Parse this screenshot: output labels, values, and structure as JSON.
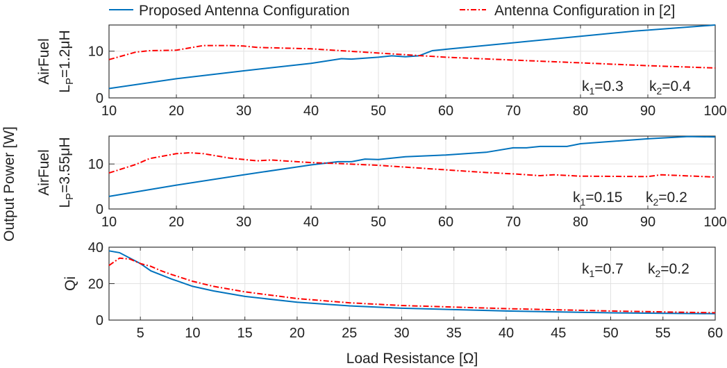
{
  "legend": {
    "entries": [
      {
        "label": "Proposed Antenna Configuration",
        "color": "#0072BD",
        "style": "solid"
      },
      {
        "label": "Antenna Configuration in [2]",
        "color": "#FF0000",
        "style": "dash-dot"
      }
    ]
  },
  "ylabel_common": "Output Power [W]",
  "chart_data": [
    {
      "type": "line",
      "ylabel_line1": "AirFuel",
      "ylabel_line2_main": "L",
      "ylabel_line2_sub": "P",
      "ylabel_line2_rest": "=1.2μH",
      "xlim": [
        10,
        100
      ],
      "ylim": [
        0,
        15.6
      ],
      "xticks": [
        10,
        20,
        30,
        40,
        50,
        60,
        70,
        80,
        90,
        100
      ],
      "yticks": [
        0,
        10
      ],
      "grid": true,
      "annotations": [
        {
          "main": "k",
          "sub": "1",
          "rest": "=0.3"
        },
        {
          "main": "k",
          "sub": "2",
          "rest": "=0.4"
        }
      ],
      "series": [
        {
          "name": "Proposed Antenna Configuration",
          "x": [
            10,
            20,
            30,
            40,
            44.5,
            46,
            50,
            52,
            54,
            56,
            58,
            60,
            70,
            80,
            88,
            90,
            100
          ],
          "y": [
            2.0,
            4.1,
            5.8,
            7.4,
            8.4,
            8.3,
            8.7,
            9.0,
            8.8,
            9.0,
            10.1,
            10.4,
            11.8,
            13.2,
            14.3,
            14.5,
            15.6
          ]
        },
        {
          "name": "Antenna Configuration in [2]",
          "x": [
            10,
            14,
            16,
            20,
            24,
            28,
            30,
            32,
            40,
            50,
            60,
            70,
            80,
            90,
            100
          ],
          "y": [
            8.2,
            9.8,
            10.1,
            10.2,
            11.2,
            11.2,
            11.1,
            10.8,
            10.5,
            9.6,
            8.7,
            8.1,
            7.5,
            6.9,
            6.4
          ]
        }
      ]
    },
    {
      "type": "line",
      "ylabel_line1": "AirFuel",
      "ylabel_line2_main": "L",
      "ylabel_line2_sub": "P",
      "ylabel_line2_rest": "=3.55μH",
      "xlim": [
        10,
        100
      ],
      "ylim": [
        0,
        16.2
      ],
      "xticks": [
        10,
        20,
        30,
        40,
        50,
        60,
        70,
        80,
        90,
        100
      ],
      "yticks": [
        0,
        10
      ],
      "grid": true,
      "annotations": [
        {
          "main": "k",
          "sub": "1",
          "rest": "=0.15"
        },
        {
          "main": "k",
          "sub": "2",
          "rest": "=0.2"
        }
      ],
      "series": [
        {
          "name": "Proposed Antenna Configuration",
          "x": [
            10,
            20,
            30,
            40,
            44,
            46,
            48,
            50,
            54,
            60,
            66,
            70,
            72,
            74,
            78,
            80,
            90,
            96,
            100
          ],
          "y": [
            2.8,
            5.3,
            7.6,
            9.8,
            10.5,
            10.5,
            11.1,
            11.0,
            11.6,
            12.0,
            12.6,
            13.6,
            13.6,
            13.9,
            13.9,
            14.5,
            15.6,
            16.1,
            16.0
          ]
        },
        {
          "name": "Antenna Configuration in [2]",
          "x": [
            10,
            14,
            16,
            20,
            22,
            24,
            28,
            32,
            34,
            40,
            44,
            50,
            60,
            66,
            70,
            74,
            76,
            80,
            90,
            92,
            100
          ],
          "y": [
            8.0,
            9.9,
            11.2,
            12.3,
            12.5,
            12.3,
            11.3,
            10.7,
            10.9,
            10.3,
            10.1,
            9.7,
            8.7,
            8.1,
            7.8,
            7.4,
            7.6,
            7.3,
            7.2,
            7.6,
            7.1
          ]
        }
      ]
    },
    {
      "type": "line",
      "ylabel_line1": "Qi",
      "xlabel": "Load Resistance [Ω]",
      "xlim": [
        2,
        60
      ],
      "ylim": [
        0,
        40
      ],
      "xticks": [
        5,
        10,
        15,
        20,
        25,
        30,
        35,
        40,
        45,
        50,
        55,
        60
      ],
      "yticks": [
        0,
        20,
        40
      ],
      "grid": true,
      "annotations": [
        {
          "main": "k",
          "sub": "1",
          "rest": "=0.7"
        },
        {
          "main": "k",
          "sub": "2",
          "rest": "=0.2"
        }
      ],
      "series": [
        {
          "name": "Proposed Antenna Configuration",
          "x": [
            2,
            3,
            4,
            5,
            6,
            8,
            10,
            12,
            15,
            20,
            25,
            30,
            40,
            50,
            60
          ],
          "y": [
            38,
            37,
            34,
            31,
            27,
            22.5,
            18.5,
            16,
            13,
            9.8,
            7.8,
            6.5,
            5,
            4,
            3.5
          ]
        },
        {
          "name": "Antenna Configuration in [2]",
          "x": [
            2,
            3,
            4,
            5,
            6,
            7,
            8,
            10,
            12,
            15,
            20,
            25,
            30,
            40,
            50,
            60
          ],
          "y": [
            30,
            34,
            33.5,
            31,
            29.5,
            27,
            25,
            21.3,
            18.5,
            15.5,
            11.8,
            9.5,
            8,
            6.3,
            5,
            4
          ]
        }
      ]
    }
  ]
}
